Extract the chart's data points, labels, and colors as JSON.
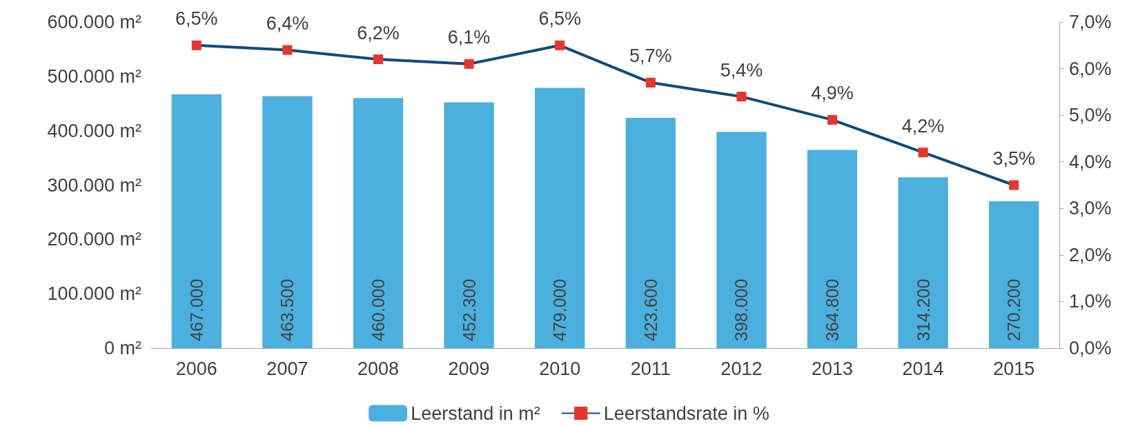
{
  "chart_data": {
    "type": "bar",
    "categories": [
      "2006",
      "2007",
      "2008",
      "2009",
      "2010",
      "2011",
      "2012",
      "2013",
      "2014",
      "2015"
    ],
    "series": [
      {
        "name": "Leerstand in m²",
        "color": "#4bb0de",
        "values": [
          467000,
          463500,
          460000,
          452300,
          479000,
          423600,
          398000,
          364800,
          314200,
          270200
        ],
        "value_labels": [
          "467.000",
          "463.500",
          "460.000",
          "452.300",
          "479.000",
          "423.600",
          "398.000",
          "364.800",
          "314.200",
          "270.200"
        ]
      },
      {
        "name": "Leerstandsrate in %",
        "type": "line",
        "axis": "y2",
        "color": "#104a7c",
        "marker": "square",
        "values": [
          6.5,
          6.4,
          6.2,
          6.1,
          6.5,
          5.7,
          5.4,
          4.9,
          4.2,
          3.5
        ],
        "value_labels": [
          "6,5%",
          "6,4%",
          "6,2%",
          "6,1%",
          "6,5%",
          "5,7%",
          "5,4%",
          "4,9%",
          "4,2%",
          "3,5%"
        ]
      }
    ],
    "ylim": [
      0,
      600000
    ],
    "yticks": [
      {
        "value": 0,
        "label": "0 m²"
      },
      {
        "value": 100000,
        "label": "100.000 m²"
      },
      {
        "value": 200000,
        "label": "200.000 m²"
      },
      {
        "value": 300000,
        "label": "300.000 m²"
      },
      {
        "value": 400000,
        "label": "400.000 m²"
      },
      {
        "value": 500000,
        "label": "500.000 m²"
      },
      {
        "value": 600000,
        "label": "600.000 m²"
      }
    ],
    "y2lim": [
      0,
      7
    ],
    "y2ticks": [
      {
        "value": 0,
        "label": "0,0%"
      },
      {
        "value": 1,
        "label": "1,0%"
      },
      {
        "value": 2,
        "label": "2,0%"
      },
      {
        "value": 3,
        "label": "3,0%"
      },
      {
        "value": 4,
        "label": "4,0%"
      },
      {
        "value": 5,
        "label": "5,0%"
      },
      {
        "value": 6,
        "label": "6,0%"
      },
      {
        "value": 7,
        "label": "7,0%"
      }
    ],
    "grid": false,
    "legend": "bottom"
  }
}
